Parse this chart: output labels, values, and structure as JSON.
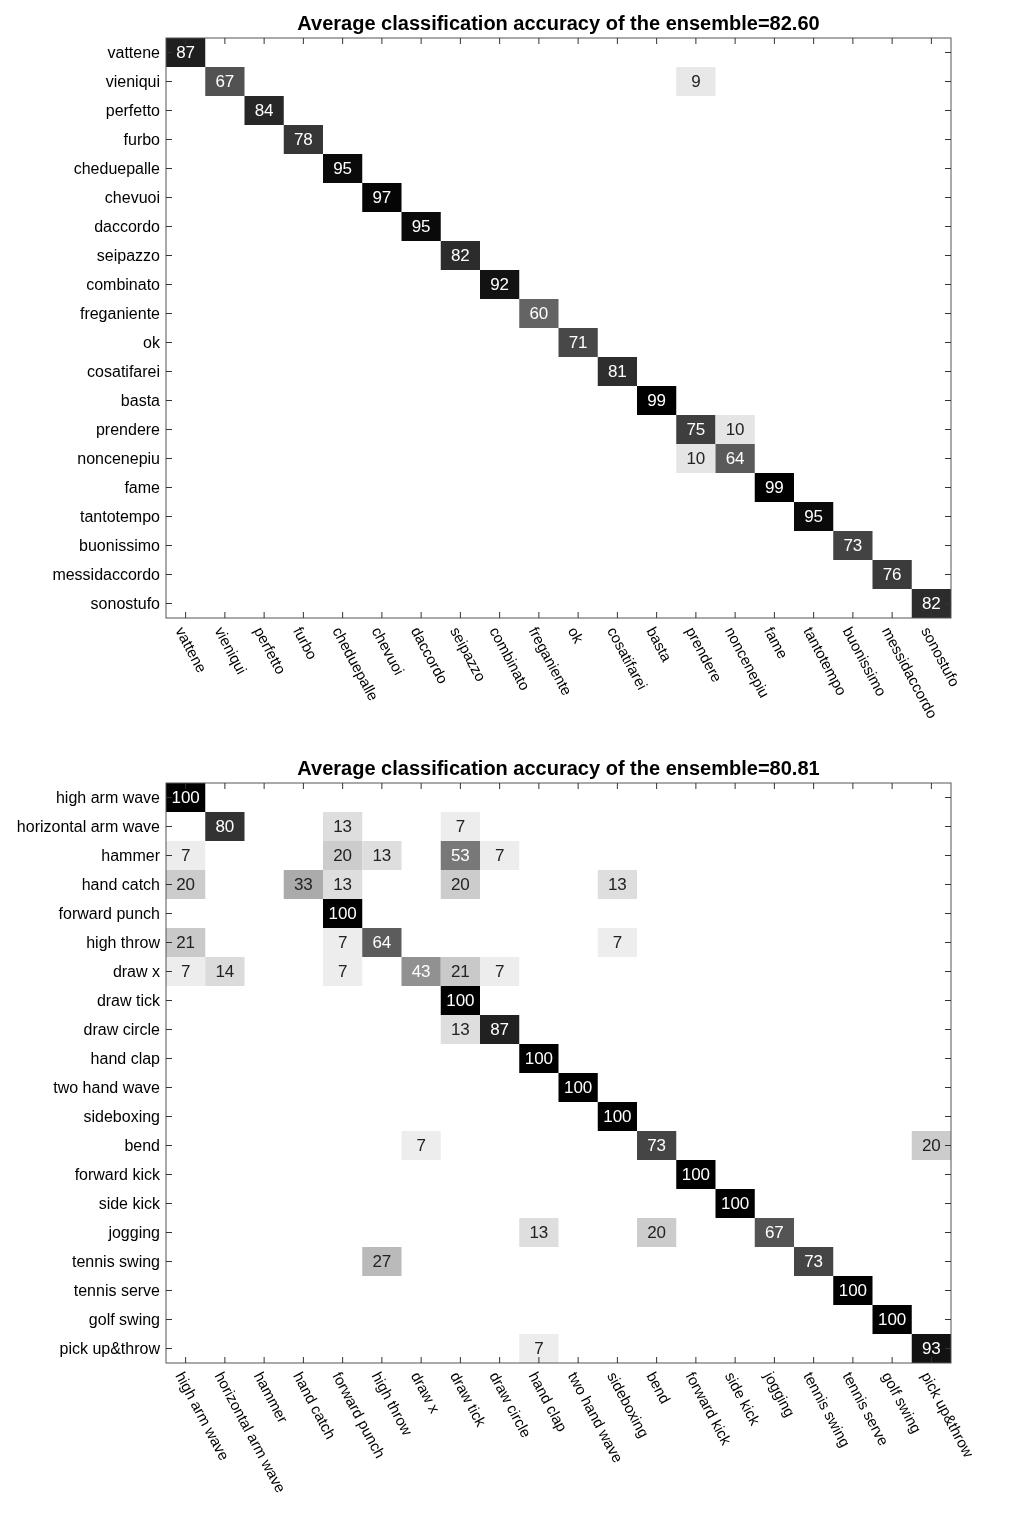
{
  "chart_data": [
    {
      "type": "heatmap",
      "title": "Average classification accuracy of the ensemble=82.60",
      "data_labels": true,
      "categories": [
        "vattene",
        "vieniqui",
        "perfetto",
        "furbo",
        "cheduepalle",
        "chevuoi",
        "daccordo",
        "seipazzo",
        "combinato",
        "freganiente",
        "ok",
        "cosatifarei",
        "basta",
        "prendere",
        "noncenepiu",
        "fame",
        "tantotempo",
        "buonissimo",
        "messidaccordo",
        "sonostufo"
      ],
      "y_categories": [
        "vattene",
        "vieniqui",
        "perfetto",
        "furbo",
        "cheduepalle",
        "chevuoi",
        "daccordo",
        "seipazzo",
        "combinato",
        "freganiente",
        "ok",
        "cosatifarei",
        "basta",
        "prendere",
        "noncenepiu",
        "fame",
        "tantotempo",
        "buonissimo",
        "messidaccordo",
        "sonostufo"
      ],
      "cells": [
        [
          87,
          null,
          null,
          null,
          null,
          null,
          null,
          null,
          null,
          null,
          null,
          null,
          null,
          null,
          null,
          null,
          null,
          null,
          null,
          null
        ],
        [
          null,
          67,
          null,
          null,
          null,
          null,
          null,
          null,
          null,
          null,
          null,
          null,
          null,
          9,
          null,
          null,
          null,
          null,
          null,
          null
        ],
        [
          null,
          null,
          84,
          null,
          null,
          null,
          null,
          null,
          null,
          null,
          null,
          null,
          null,
          null,
          null,
          null,
          null,
          null,
          null,
          null
        ],
        [
          null,
          null,
          null,
          78,
          null,
          null,
          null,
          null,
          null,
          null,
          null,
          null,
          null,
          null,
          null,
          null,
          null,
          null,
          null,
          null
        ],
        [
          null,
          null,
          null,
          null,
          95,
          null,
          null,
          null,
          null,
          null,
          null,
          null,
          null,
          null,
          null,
          null,
          null,
          null,
          null,
          null
        ],
        [
          null,
          null,
          null,
          null,
          null,
          97,
          null,
          null,
          null,
          null,
          null,
          null,
          null,
          null,
          null,
          null,
          null,
          null,
          null,
          null
        ],
        [
          null,
          null,
          null,
          null,
          null,
          null,
          95,
          null,
          null,
          null,
          null,
          null,
          null,
          null,
          null,
          null,
          null,
          null,
          null,
          null
        ],
        [
          null,
          null,
          null,
          null,
          null,
          null,
          null,
          82,
          null,
          null,
          null,
          null,
          null,
          null,
          null,
          null,
          null,
          null,
          null,
          null
        ],
        [
          null,
          null,
          null,
          null,
          null,
          null,
          null,
          null,
          92,
          null,
          null,
          null,
          null,
          null,
          null,
          null,
          null,
          null,
          null,
          null
        ],
        [
          null,
          null,
          null,
          null,
          null,
          null,
          null,
          null,
          null,
          60,
          null,
          null,
          null,
          null,
          null,
          null,
          null,
          null,
          null,
          null
        ],
        [
          null,
          null,
          null,
          null,
          null,
          null,
          null,
          null,
          null,
          null,
          71,
          null,
          null,
          null,
          null,
          null,
          null,
          null,
          null,
          null
        ],
        [
          null,
          null,
          null,
          null,
          null,
          null,
          null,
          null,
          null,
          null,
          null,
          81,
          null,
          null,
          null,
          null,
          null,
          null,
          null,
          null
        ],
        [
          null,
          null,
          null,
          null,
          null,
          null,
          null,
          null,
          null,
          null,
          null,
          null,
          99,
          null,
          null,
          null,
          null,
          null,
          null,
          null
        ],
        [
          null,
          null,
          null,
          null,
          null,
          null,
          null,
          null,
          null,
          null,
          null,
          null,
          null,
          75,
          10,
          null,
          null,
          null,
          null,
          null
        ],
        [
          null,
          null,
          null,
          null,
          null,
          null,
          null,
          null,
          null,
          null,
          null,
          null,
          null,
          10,
          64,
          null,
          null,
          null,
          null,
          null
        ],
        [
          null,
          null,
          null,
          null,
          null,
          null,
          null,
          null,
          null,
          null,
          null,
          null,
          null,
          null,
          null,
          99,
          null,
          null,
          null,
          null
        ],
        [
          null,
          null,
          null,
          null,
          null,
          null,
          null,
          null,
          null,
          null,
          null,
          null,
          null,
          null,
          null,
          null,
          95,
          null,
          null,
          null
        ],
        [
          null,
          null,
          null,
          null,
          null,
          null,
          null,
          null,
          null,
          null,
          null,
          null,
          null,
          null,
          null,
          null,
          null,
          73,
          null,
          null
        ],
        [
          null,
          null,
          null,
          null,
          null,
          null,
          null,
          null,
          null,
          null,
          null,
          null,
          null,
          null,
          null,
          null,
          null,
          null,
          76,
          null
        ],
        [
          null,
          null,
          null,
          null,
          null,
          null,
          null,
          null,
          null,
          null,
          null,
          null,
          null,
          null,
          null,
          null,
          null,
          null,
          null,
          82
        ]
      ]
    },
    {
      "type": "heatmap",
      "title": "Average classification accuracy of the ensemble=80.81",
      "data_labels": true,
      "categories": [
        "high arm wave",
        "horizontal arm wave",
        "hammer",
        "hand catch",
        "forward punch",
        "high throw",
        "draw x",
        "draw tick",
        "draw circle",
        "hand clap",
        "two hand wave",
        "sideboxing",
        "bend",
        "forward kick",
        "side kick",
        "jogging",
        "tennis swing",
        "tennis serve",
        "golf swing",
        "pick up&throw"
      ],
      "y_categories": [
        "high arm wave",
        "horizontal arm wave",
        "hammer",
        "hand catch",
        "forward punch",
        "high throw",
        "draw x",
        "draw tick",
        "draw circle",
        "hand clap",
        "two hand wave",
        "sideboxing",
        "bend",
        "forward kick",
        "side kick",
        "jogging",
        "tennis swing",
        "tennis serve",
        "golf swing",
        "pick up&throw"
      ],
      "cells": [
        [
          100,
          null,
          null,
          null,
          null,
          null,
          null,
          null,
          null,
          null,
          null,
          null,
          null,
          null,
          null,
          null,
          null,
          null,
          null,
          null
        ],
        [
          null,
          80,
          null,
          null,
          13,
          null,
          null,
          7,
          null,
          null,
          null,
          null,
          null,
          null,
          null,
          null,
          null,
          null,
          null,
          null
        ],
        [
          7,
          null,
          null,
          null,
          20,
          13,
          null,
          53,
          7,
          null,
          null,
          null,
          null,
          null,
          null,
          null,
          null,
          null,
          null,
          null
        ],
        [
          20,
          null,
          null,
          33,
          13,
          null,
          null,
          20,
          null,
          null,
          null,
          13,
          null,
          null,
          null,
          null,
          null,
          null,
          null,
          null
        ],
        [
          null,
          null,
          null,
          null,
          100,
          null,
          null,
          null,
          null,
          null,
          null,
          null,
          null,
          null,
          null,
          null,
          null,
          null,
          null,
          null
        ],
        [
          21,
          null,
          null,
          null,
          7,
          64,
          null,
          null,
          null,
          null,
          null,
          7,
          null,
          null,
          null,
          null,
          null,
          null,
          null,
          null
        ],
        [
          7,
          14,
          null,
          null,
          7,
          null,
          43,
          21,
          7,
          null,
          null,
          null,
          null,
          null,
          null,
          null,
          null,
          null,
          null,
          null
        ],
        [
          null,
          null,
          null,
          null,
          null,
          null,
          null,
          100,
          null,
          null,
          null,
          null,
          null,
          null,
          null,
          null,
          null,
          null,
          null,
          null
        ],
        [
          null,
          null,
          null,
          null,
          null,
          null,
          null,
          13,
          87,
          null,
          null,
          null,
          null,
          null,
          null,
          null,
          null,
          null,
          null,
          null
        ],
        [
          null,
          null,
          null,
          null,
          null,
          null,
          null,
          null,
          null,
          100,
          null,
          null,
          null,
          null,
          null,
          null,
          null,
          null,
          null,
          null
        ],
        [
          null,
          null,
          null,
          null,
          null,
          null,
          null,
          null,
          null,
          null,
          100,
          null,
          null,
          null,
          null,
          null,
          null,
          null,
          null,
          null
        ],
        [
          null,
          null,
          null,
          null,
          null,
          null,
          null,
          null,
          null,
          null,
          null,
          100,
          null,
          null,
          null,
          null,
          null,
          null,
          null,
          null
        ],
        [
          null,
          null,
          null,
          null,
          null,
          null,
          7,
          null,
          null,
          null,
          null,
          null,
          73,
          null,
          null,
          null,
          null,
          null,
          null,
          20
        ],
        [
          null,
          null,
          null,
          null,
          null,
          null,
          null,
          null,
          null,
          null,
          null,
          null,
          null,
          100,
          null,
          null,
          null,
          null,
          null,
          null
        ],
        [
          null,
          null,
          null,
          null,
          null,
          null,
          null,
          null,
          null,
          null,
          null,
          null,
          null,
          null,
          100,
          null,
          null,
          null,
          null,
          null
        ],
        [
          null,
          null,
          null,
          null,
          null,
          null,
          null,
          null,
          null,
          13,
          null,
          null,
          20,
          null,
          null,
          67,
          null,
          null,
          null,
          null
        ],
        [
          null,
          null,
          null,
          null,
          null,
          27,
          null,
          null,
          null,
          null,
          null,
          null,
          null,
          null,
          null,
          null,
          73,
          null,
          null,
          null
        ],
        [
          null,
          null,
          null,
          null,
          null,
          null,
          null,
          null,
          null,
          null,
          null,
          null,
          null,
          null,
          null,
          null,
          null,
          100,
          null,
          null
        ],
        [
          null,
          null,
          null,
          null,
          null,
          null,
          null,
          null,
          null,
          null,
          null,
          null,
          null,
          null,
          null,
          null,
          null,
          null,
          100,
          null
        ],
        [
          null,
          null,
          null,
          null,
          null,
          null,
          null,
          null,
          null,
          7,
          null,
          null,
          null,
          null,
          null,
          null,
          null,
          null,
          null,
          93
        ]
      ]
    }
  ]
}
